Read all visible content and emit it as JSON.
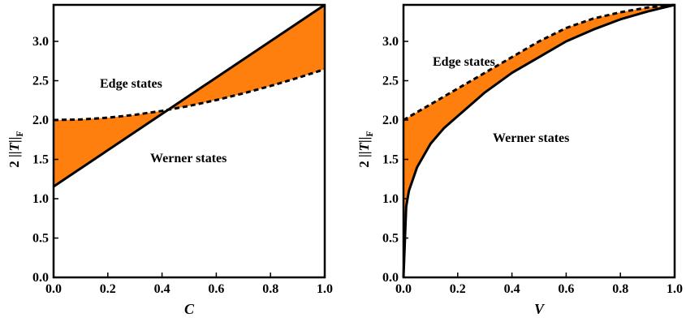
{
  "chart_data": [
    {
      "type": "area",
      "xlabel": "C",
      "ylabel": {
        "prefix": "2 ||",
        "var": "T",
        "suffix": "||",
        "sub": "F"
      },
      "xlim": [
        0,
        1.0
      ],
      "ylim": [
        0,
        3.464
      ],
      "x_ticks": [
        "0.0",
        "0.2",
        "0.4",
        "0.6",
        "0.8",
        "1.0"
      ],
      "y_ticks": [
        "0.0",
        "0.5",
        "1.0",
        "1.5",
        "2.0",
        "2.5",
        "3.0"
      ],
      "grid": false,
      "annotations": {
        "upper": "Edge states",
        "lower": "Werner states"
      },
      "colors": {
        "fill": "#ff7f0e",
        "line": "#000000"
      },
      "series": [
        {
          "style": "dashed",
          "x": [
            0.0,
            0.1,
            0.2,
            0.3,
            0.4,
            0.5,
            0.6,
            0.7,
            0.8,
            0.9,
            1.0
          ],
          "values": [
            2.0,
            2.0075,
            2.0298,
            2.0664,
            2.1166,
            2.1794,
            2.2539,
            2.3392,
            2.4331,
            2.5358,
            2.6458
          ]
        },
        {
          "style": "solid",
          "x": [
            0.0,
            1.0
          ],
          "values": [
            1.1547,
            3.4641
          ]
        }
      ]
    },
    {
      "type": "area",
      "xlabel": "V",
      "ylabel": {
        "prefix": "2 ||",
        "var": "T",
        "suffix": "||",
        "sub": "F"
      },
      "xlim": [
        0,
        1.0
      ],
      "ylim": [
        0,
        3.464
      ],
      "x_ticks": [
        "0.0",
        "0.2",
        "0.4",
        "0.6",
        "0.8",
        "1.0"
      ],
      "y_ticks": [
        "0.0",
        "0.5",
        "1.0",
        "1.5",
        "2.0",
        "2.5",
        "3.0"
      ],
      "grid": false,
      "annotations": {
        "upper": "Edge states",
        "lower": "Werner states"
      },
      "colors": {
        "fill": "#ff7f0e",
        "line": "#000000"
      },
      "series": [
        {
          "style": "dashed",
          "x": [
            0.0,
            0.05,
            0.1,
            0.15,
            0.2,
            0.3,
            0.4,
            0.5,
            0.6,
            0.7,
            0.8,
            0.9,
            1.0
          ],
          "values": [
            2.0,
            2.1,
            2.2,
            2.3,
            2.4,
            2.6,
            2.8,
            3.0,
            3.17,
            3.29,
            3.37,
            3.43,
            3.4641
          ]
        },
        {
          "style": "solid",
          "x": [
            0.0,
            0.01,
            0.02,
            0.05,
            0.1,
            0.15,
            0.2,
            0.3,
            0.4,
            0.5,
            0.6,
            0.7,
            0.8,
            0.9,
            1.0
          ],
          "values": [
            0.0,
            0.9,
            1.1,
            1.4,
            1.7,
            1.9,
            2.05,
            2.35,
            2.6,
            2.8,
            3.0,
            3.15,
            3.28,
            3.38,
            3.4641
          ]
        }
      ]
    }
  ]
}
